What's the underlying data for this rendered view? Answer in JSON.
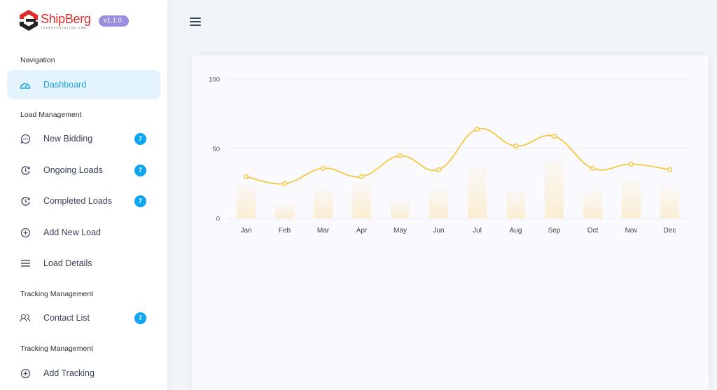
{
  "brand": {
    "name": "ShipBerg",
    "tagline": "TRANSPORTATION CRM",
    "version": "v1.1.0."
  },
  "sidebar": {
    "sections": [
      {
        "label": "Navigation"
      },
      {
        "label": "Load Management"
      },
      {
        "label": "Tracking Management"
      },
      {
        "label": "Tracking Management"
      }
    ],
    "items": [
      {
        "label": "Dashboard",
        "icon": "gauge-icon",
        "active": true
      },
      {
        "label": "New Bidding",
        "icon": "chat-bubble-icon",
        "badge": "7"
      },
      {
        "label": "Ongoing Loads",
        "icon": "clock-rotate-icon",
        "badge": "7"
      },
      {
        "label": "Completed Loads",
        "icon": "clock-rotate-icon",
        "badge": "7"
      },
      {
        "label": "Add New Load",
        "icon": "plus-circle-icon"
      },
      {
        "label": "Load Details",
        "icon": "list-icon"
      },
      {
        "label": "Contact List",
        "icon": "users-icon",
        "badge": "7"
      },
      {
        "label": "Add Tracking",
        "icon": "plus-circle-icon"
      }
    ]
  },
  "header": {
    "menu_icon": "hamburger-icon"
  },
  "colors": {
    "accent": "#1aa3e8",
    "badge": "#0ea5f0",
    "line": "#f5c842",
    "bar": "#fbeccb",
    "brand_red": "#e02b2b",
    "version_badge": "#9b8fe0"
  },
  "chart_data": {
    "type": "bar",
    "categories": [
      "Jan",
      "Feb",
      "Mar",
      "Apr",
      "May",
      "Jun",
      "Jul",
      "Aug",
      "Sep",
      "Oct",
      "Nov",
      "Dec"
    ],
    "series": [
      {
        "name": "Bars",
        "type": "bar",
        "values": [
          24,
          10,
          21,
          26,
          12,
          21,
          36,
          20,
          42,
          20,
          29,
          23
        ]
      },
      {
        "name": "Line",
        "type": "line",
        "values": [
          30,
          25,
          36,
          30,
          45,
          35,
          64,
          52,
          59,
          36,
          39,
          35
        ]
      }
    ],
    "title": "",
    "xlabel": "",
    "ylabel": "",
    "ylim": [
      0,
      100
    ],
    "yticks": [
      0,
      50,
      100
    ],
    "grid": true,
    "legend": "none"
  }
}
